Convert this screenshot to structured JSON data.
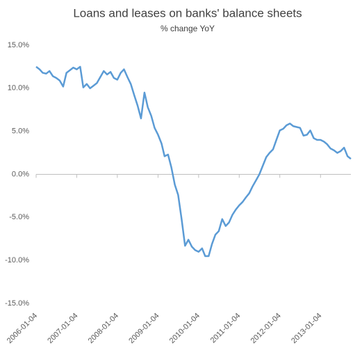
{
  "chart_data": {
    "type": "line",
    "title": "Loans and leases on banks' balance sheets",
    "subtitle": "% change YoY",
    "x": [
      "2006-01-04",
      "2006-02-04",
      "2006-03-04",
      "2006-04-04",
      "2006-05-04",
      "2006-06-04",
      "2006-07-04",
      "2006-08-04",
      "2006-09-04",
      "2006-10-04",
      "2006-11-04",
      "2006-12-04",
      "2007-01-04",
      "2007-02-04",
      "2007-03-04",
      "2007-04-04",
      "2007-05-04",
      "2007-06-04",
      "2007-07-04",
      "2007-08-04",
      "2007-09-04",
      "2007-10-04",
      "2007-11-04",
      "2007-12-04",
      "2008-01-04",
      "2008-02-04",
      "2008-03-04",
      "2008-04-04",
      "2008-05-04",
      "2008-06-04",
      "2008-07-04",
      "2008-08-04",
      "2008-09-04",
      "2008-10-04",
      "2008-11-04",
      "2008-12-04",
      "2009-01-04",
      "2009-02-04",
      "2009-03-04",
      "2009-04-04",
      "2009-05-04",
      "2009-06-04",
      "2009-07-04",
      "2009-08-04",
      "2009-09-04",
      "2009-10-04",
      "2009-11-04",
      "2009-12-04",
      "2010-01-04",
      "2010-02-04",
      "2010-03-04",
      "2010-04-04",
      "2010-05-04",
      "2010-06-04",
      "2010-07-04",
      "2010-08-04",
      "2010-09-04",
      "2010-10-04",
      "2010-11-04",
      "2010-12-04",
      "2011-01-04",
      "2011-02-04",
      "2011-03-04",
      "2011-04-04",
      "2011-05-04",
      "2011-06-04",
      "2011-07-04",
      "2011-08-04",
      "2011-09-04",
      "2011-10-04",
      "2011-11-04",
      "2011-12-04",
      "2012-01-04",
      "2012-02-04",
      "2012-03-04",
      "2012-04-04",
      "2012-05-04",
      "2012-06-04",
      "2012-07-04",
      "2012-08-04",
      "2012-09-04",
      "2012-10-04",
      "2012-11-04",
      "2012-12-04",
      "2013-01-04",
      "2013-02-04",
      "2013-03-04",
      "2013-04-04",
      "2013-05-04",
      "2013-06-04",
      "2013-07-04",
      "2013-08-04",
      "2013-09-04",
      "2013-10-04"
    ],
    "series": [
      {
        "name": "Loans and leases",
        "color": "#5b9bd5",
        "values": [
          12.5,
          12.2,
          11.8,
          11.7,
          12.0,
          11.4,
          11.2,
          10.9,
          10.2,
          11.8,
          12.1,
          12.4,
          12.2,
          12.5,
          10.1,
          10.5,
          10.0,
          10.3,
          10.6,
          11.3,
          12.0,
          11.6,
          11.9,
          11.2,
          11.0,
          11.8,
          12.2,
          11.3,
          10.5,
          9.2,
          8.0,
          6.5,
          9.5,
          7.8,
          6.8,
          5.4,
          4.6,
          3.6,
          2.1,
          2.3,
          0.8,
          -1.2,
          -2.4,
          -5.2,
          -8.3,
          -7.6,
          -8.4,
          -8.8,
          -9.0,
          -8.6,
          -9.5,
          -9.5,
          -8.1,
          -7.0,
          -6.6,
          -5.2,
          -6.0,
          -5.6,
          -4.7,
          -4.1,
          -3.6,
          -3.2,
          -2.7,
          -2.2,
          -1.4,
          -0.7,
          0.0,
          1.0,
          2.0,
          2.5,
          2.9,
          4.0,
          5.1,
          5.3,
          5.7,
          5.9,
          5.6,
          5.5,
          5.4,
          4.5,
          4.6,
          5.1,
          4.2,
          4.0,
          4.0,
          3.8,
          3.5,
          3.0,
          2.8,
          2.5,
          2.7,
          3.1,
          2.1,
          1.8
        ]
      }
    ],
    "xlim": [
      "2006-01-04",
      "2013-10-04"
    ],
    "xticks": [
      "2006-01-04",
      "2007-01-04",
      "2008-01-04",
      "2009-01-04",
      "2010-01-04",
      "2011-01-04",
      "2012-01-04",
      "2013-01-04"
    ],
    "ylim": [
      -15,
      15
    ],
    "yticks": [
      {
        "value": -15,
        "label": "-15.0%"
      },
      {
        "value": -10,
        "label": "-10.0%"
      },
      {
        "value": -5,
        "label": "-5.0%"
      },
      {
        "value": 0,
        "label": "0.0%"
      },
      {
        "value": 5,
        "label": "5.0%"
      },
      {
        "value": 10,
        "label": "10.0%"
      },
      {
        "value": 15,
        "label": "15.0%"
      }
    ],
    "grid": false
  }
}
